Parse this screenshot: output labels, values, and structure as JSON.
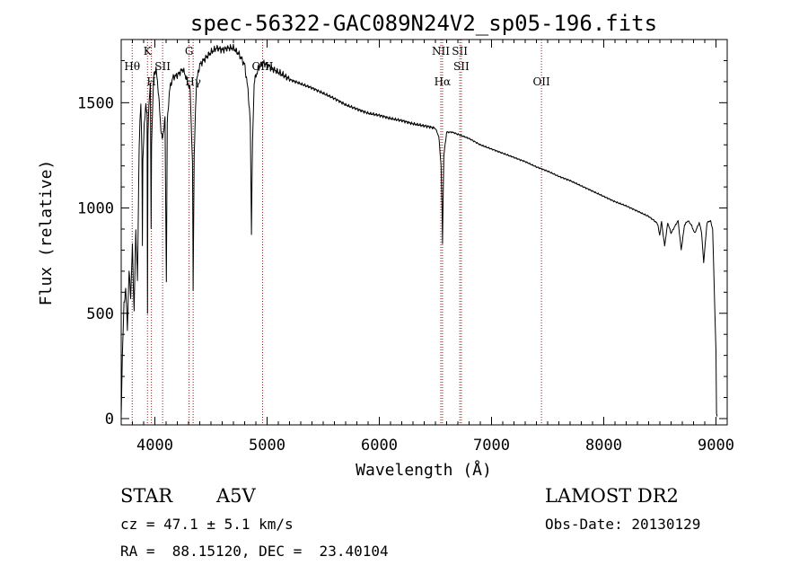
{
  "chart_data": {
    "type": "line",
    "title": "spec-56322-GAC089N24V2_sp05-196.fits",
    "xlabel": "Wavelength (Å)",
    "ylabel": "Flux (relative)",
    "xlim": [
      3700,
      9100
    ],
    "ylim": [
      -30,
      1800
    ],
    "xticks": [
      4000,
      5000,
      6000,
      7000,
      8000,
      9000
    ],
    "yticks": [
      0,
      500,
      1000,
      1500
    ],
    "grid": false,
    "legend": "none",
    "spectrum": {
      "x": [
        3700,
        3710,
        3725,
        3740,
        3755,
        3770,
        3785,
        3800,
        3815,
        3830,
        3845,
        3860,
        3875,
        3885,
        3889,
        3893,
        3905,
        3920,
        3930,
        3934,
        3938,
        3950,
        3960,
        3966,
        3970,
        3975,
        3990,
        4010,
        4030,
        4050,
        4065,
        4090,
        4102,
        4110,
        4130,
        4160,
        4200,
        4250,
        4290,
        4315,
        4335,
        4341,
        4350,
        4370,
        4400,
        4450,
        4500,
        4550,
        4600,
        4650,
        4700,
        4750,
        4800,
        4830,
        4850,
        4858,
        4861,
        4864,
        4870,
        4885,
        4920,
        4960,
        5000,
        5050,
        5100,
        5150,
        5200,
        5300,
        5400,
        5500,
        5600,
        5700,
        5800,
        5900,
        6000,
        6100,
        6200,
        6300,
        6400,
        6450,
        6500,
        6530,
        6550,
        6560,
        6563,
        6566,
        6575,
        6600,
        6650,
        6700,
        6800,
        6900,
        7000,
        7100,
        7200,
        7300,
        7400,
        7500,
        7600,
        7700,
        7800,
        7900,
        8000,
        8100,
        8200,
        8300,
        8400,
        8450,
        8480,
        8498,
        8515,
        8542,
        8570,
        8600,
        8630,
        8662,
        8690,
        8720,
        8750,
        8780,
        8810,
        8850,
        8870,
        8890,
        8920,
        8950,
        8970,
        8990,
        9000,
        9005,
        9010
      ],
      "y": [
        0,
        300,
        540,
        620,
        430,
        700,
        580,
        820,
        500,
        900,
        650,
        1300,
        1500,
        1260,
        820,
        1210,
        1400,
        1480,
        1460,
        500,
        1350,
        1530,
        1590,
        900,
        1280,
        1400,
        1630,
        1660,
        1560,
        1400,
        1320,
        1420,
        650,
        1400,
        1560,
        1620,
        1630,
        1660,
        1600,
        1560,
        1200,
        620,
        1250,
        1600,
        1680,
        1710,
        1740,
        1760,
        1750,
        1760,
        1760,
        1730,
        1680,
        1560,
        1400,
        1000,
        890,
        1050,
        1300,
        1600,
        1660,
        1690,
        1680,
        1660,
        1645,
        1630,
        1610,
        1590,
        1570,
        1545,
        1520,
        1490,
        1470,
        1450,
        1440,
        1425,
        1415,
        1400,
        1390,
        1385,
        1378,
        1340,
        1200,
        960,
        830,
        960,
        1250,
        1360,
        1360,
        1350,
        1330,
        1300,
        1280,
        1260,
        1240,
        1220,
        1195,
        1175,
        1150,
        1130,
        1105,
        1080,
        1055,
        1030,
        1010,
        985,
        960,
        940,
        925,
        870,
        935,
        820,
        930,
        880,
        910,
        940,
        800,
        920,
        940,
        920,
        880,
        930,
        890,
        740,
        930,
        940,
        900,
        500,
        320,
        20,
        10
      ]
    },
    "line_markers": [
      {
        "label": "Hθ",
        "x": 3798,
        "row": 2
      },
      {
        "label": "K",
        "x": 3934,
        "row": 1
      },
      {
        "label": "H",
        "x": 3969,
        "row": 3
      },
      {
        "label": "SII",
        "x": 4069,
        "row": 2
      },
      {
        "label": "G",
        "x": 4305,
        "row": 1
      },
      {
        "label": "Hγ",
        "x": 4341,
        "row": 3
      },
      {
        "label": "OIII",
        "x": 4960,
        "row": 2
      },
      {
        "label": "NII",
        "x": 6548,
        "row": 1
      },
      {
        "label": "Hα",
        "x": 6563,
        "row": 3
      },
      {
        "label": "SII",
        "x": 6717,
        "row": 1
      },
      {
        "label": "SII",
        "x": 6731,
        "row": 2
      },
      {
        "label": "OII",
        "x": 7445,
        "row": 3
      }
    ]
  },
  "info": {
    "class": "STAR",
    "subclass": "A5V",
    "cz": "cz = 47.1 ± 5.1 km/s",
    "radec": "RA =  88.15120, DEC =  23.40104",
    "survey": "LAMOST DR2",
    "obsdate": "Obs-Date: 20130129"
  },
  "colors": {
    "spectrum": "#000000",
    "marker_line": "#8b1a1a"
  }
}
